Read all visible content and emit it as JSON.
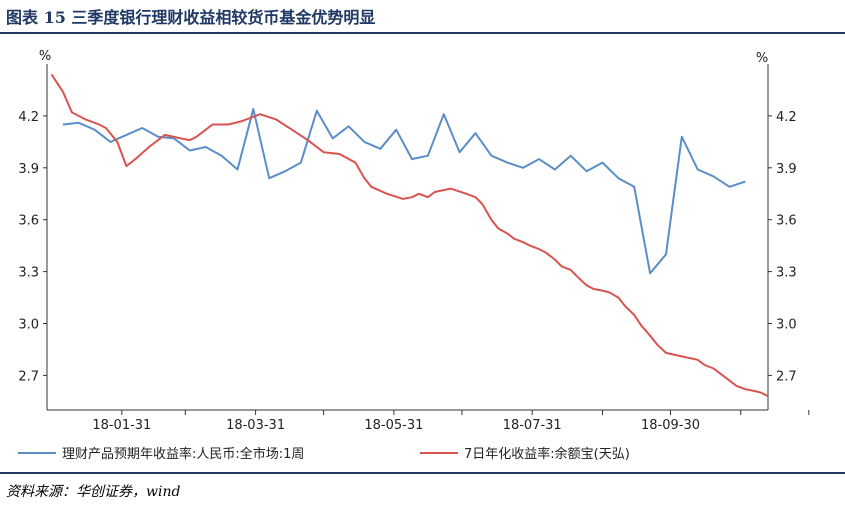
{
  "header": {
    "title": "图表 15 三季度银行理财收益相较货币基金优势明显"
  },
  "footer": {
    "source": "资料来源：华创证券，wind"
  },
  "chart_data": {
    "type": "line",
    "left_unit": "%",
    "right_unit": "%",
    "ylim": [
      2.5,
      4.5
    ],
    "y_ticks": [
      "4.2",
      "3.9",
      "3.6",
      "3.3",
      "3.0",
      "2.7"
    ],
    "x_ticks": [
      "18-01-31",
      "18-03-31",
      "18-05-31",
      "18-07-31",
      "18-09-30"
    ],
    "colors": {
      "series1": "#5b8ec8",
      "series2": "#d9534f",
      "axis": "#333333"
    },
    "series": [
      {
        "name": "理财产品预期年收益率:人民币:全市场:1周",
        "points": [
          [
            "2018-01-05",
            4.15
          ],
          [
            "2018-01-12",
            4.16
          ],
          [
            "2018-01-19",
            4.12
          ],
          [
            "2018-01-26",
            4.05
          ],
          [
            "2018-02-02",
            4.09
          ],
          [
            "2018-02-09",
            4.13
          ],
          [
            "2018-02-16",
            4.08
          ],
          [
            "2018-02-23",
            4.07
          ],
          [
            "2018-03-02",
            4.0
          ],
          [
            "2018-03-09",
            4.02
          ],
          [
            "2018-03-16",
            3.97
          ],
          [
            "2018-03-23",
            3.89
          ],
          [
            "2018-03-30",
            4.24
          ],
          [
            "2018-04-06",
            3.84
          ],
          [
            "2018-04-13",
            3.88
          ],
          [
            "2018-04-20",
            3.93
          ],
          [
            "2018-04-27",
            4.23
          ],
          [
            "2018-05-04",
            4.07
          ],
          [
            "2018-05-11",
            4.14
          ],
          [
            "2018-05-18",
            4.05
          ],
          [
            "2018-05-25",
            4.01
          ],
          [
            "2018-06-01",
            4.12
          ],
          [
            "2018-06-08",
            3.95
          ],
          [
            "2018-06-15",
            3.97
          ],
          [
            "2018-06-22",
            4.21
          ],
          [
            "2018-06-29",
            3.99
          ],
          [
            "2018-07-06",
            4.1
          ],
          [
            "2018-07-13",
            3.97
          ],
          [
            "2018-07-20",
            3.93
          ],
          [
            "2018-07-27",
            3.9
          ],
          [
            "2018-08-03",
            3.95
          ],
          [
            "2018-08-10",
            3.89
          ],
          [
            "2018-08-17",
            3.97
          ],
          [
            "2018-08-24",
            3.88
          ],
          [
            "2018-08-31",
            3.93
          ],
          [
            "2018-09-07",
            3.84
          ],
          [
            "2018-09-14",
            3.79
          ],
          [
            "2018-09-21",
            3.29
          ],
          [
            "2018-09-28",
            3.4
          ],
          [
            "2018-10-05",
            4.08
          ],
          [
            "2018-10-12",
            3.89
          ],
          [
            "2018-10-19",
            3.85
          ],
          [
            "2018-10-26",
            3.79
          ],
          [
            "2018-11-02",
            3.82
          ]
        ]
      },
      {
        "name": "7日年化收益率:余额宝(天弘)",
        "points": [
          [
            "2017-12-31",
            4.44
          ],
          [
            "2018-01-05",
            4.34
          ],
          [
            "2018-01-09",
            4.22
          ],
          [
            "2018-01-15",
            4.18
          ],
          [
            "2018-01-21",
            4.15
          ],
          [
            "2018-01-24",
            4.13
          ],
          [
            "2018-01-29",
            4.05
          ],
          [
            "2018-02-02",
            3.91
          ],
          [
            "2018-02-06",
            3.95
          ],
          [
            "2018-02-12",
            4.02
          ],
          [
            "2018-02-19",
            4.09
          ],
          [
            "2018-02-26",
            4.07
          ],
          [
            "2018-03-02",
            4.06
          ],
          [
            "2018-03-05",
            4.08
          ],
          [
            "2018-03-12",
            4.15
          ],
          [
            "2018-03-19",
            4.15
          ],
          [
            "2018-03-25",
            4.17
          ],
          [
            "2018-04-02",
            4.21
          ],
          [
            "2018-04-09",
            4.18
          ],
          [
            "2018-04-16",
            4.12
          ],
          [
            "2018-04-23",
            4.06
          ],
          [
            "2018-04-30",
            3.99
          ],
          [
            "2018-05-07",
            3.98
          ],
          [
            "2018-05-14",
            3.93
          ],
          [
            "2018-05-18",
            3.84
          ],
          [
            "2018-05-21",
            3.79
          ],
          [
            "2018-05-28",
            3.75
          ],
          [
            "2018-06-04",
            3.72
          ],
          [
            "2018-06-08",
            3.73
          ],
          [
            "2018-06-11",
            3.75
          ],
          [
            "2018-06-15",
            3.73
          ],
          [
            "2018-06-18",
            3.76
          ],
          [
            "2018-06-25",
            3.78
          ],
          [
            "2018-07-02",
            3.75
          ],
          [
            "2018-07-06",
            3.73
          ],
          [
            "2018-07-09",
            3.69
          ],
          [
            "2018-07-13",
            3.6
          ],
          [
            "2018-07-16",
            3.55
          ],
          [
            "2018-07-20",
            3.52
          ],
          [
            "2018-07-23",
            3.49
          ],
          [
            "2018-07-27",
            3.47
          ],
          [
            "2018-07-30",
            3.45
          ],
          [
            "2018-08-03",
            3.43
          ],
          [
            "2018-08-06",
            3.41
          ],
          [
            "2018-08-10",
            3.37
          ],
          [
            "2018-08-13",
            3.33
          ],
          [
            "2018-08-17",
            3.31
          ],
          [
            "2018-08-20",
            3.27
          ],
          [
            "2018-08-24",
            3.22
          ],
          [
            "2018-08-27",
            3.2
          ],
          [
            "2018-08-31",
            3.19
          ],
          [
            "2018-09-03",
            3.18
          ],
          [
            "2018-09-07",
            3.15
          ],
          [
            "2018-09-10",
            3.1
          ],
          [
            "2018-09-14",
            3.05
          ],
          [
            "2018-09-17",
            2.99
          ],
          [
            "2018-09-21",
            2.93
          ],
          [
            "2018-09-24",
            2.88
          ],
          [
            "2018-09-28",
            2.83
          ],
          [
            "2018-10-05",
            2.81
          ],
          [
            "2018-10-12",
            2.79
          ],
          [
            "2018-10-15",
            2.76
          ],
          [
            "2018-10-19",
            2.74
          ],
          [
            "2018-10-22",
            2.71
          ],
          [
            "2018-10-26",
            2.67
          ],
          [
            "2018-10-29",
            2.64
          ],
          [
            "2018-11-02",
            2.62
          ],
          [
            "2018-11-06",
            2.61
          ],
          [
            "2018-11-09",
            2.6
          ],
          [
            "2018-11-12",
            2.58
          ]
        ]
      }
    ]
  }
}
